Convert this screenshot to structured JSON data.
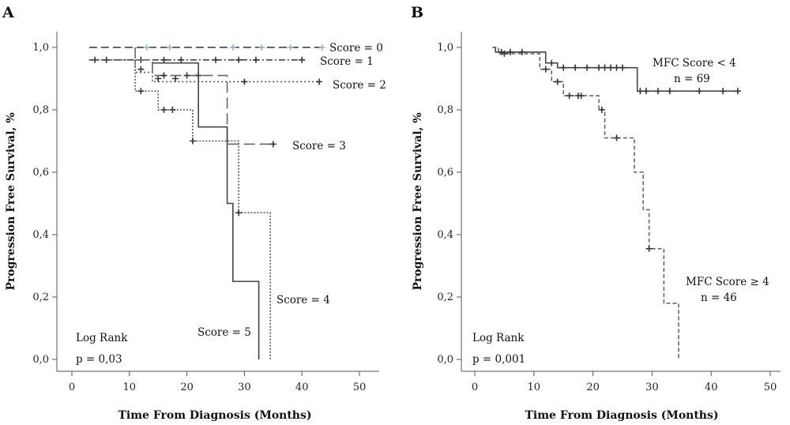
{
  "chart_data": [
    {
      "type": "line",
      "panel_label": "A",
      "xlabel": "Time From Diagnosis (Months)",
      "ylabel": "Progression Free Survival, %",
      "xlim": [
        0,
        50
      ],
      "ylim": [
        0,
        1
      ],
      "xticks": [
        0,
        10,
        20,
        30,
        40,
        50
      ],
      "xtick_labels": [
        "0",
        "10",
        "20",
        "30",
        "40",
        "50"
      ],
      "yticks": [
        0,
        0.2,
        0.4,
        0.6,
        0.8,
        1.0
      ],
      "ytick_labels": [
        "0,0",
        "0,2",
        "0,4",
        "0,6",
        "0,8",
        "1,0"
      ],
      "grid": false,
      "annotations": [
        "Log Rank",
        "p = 0,03"
      ],
      "series": [
        {
          "name": "Score = 0",
          "color": "#333333",
          "dash": "10,5",
          "censor_color": "#8fb4e8",
          "steps": [
            [
              3,
              1.0
            ],
            [
              44,
              1.0
            ]
          ],
          "censored": [
            [
              13,
              1.0
            ],
            [
              17,
              1.0
            ],
            [
              28,
              1.0
            ],
            [
              33,
              1.0
            ],
            [
              38,
              1.0
            ],
            [
              43.5,
              1.0
            ]
          ]
        },
        {
          "name": "Score = 1",
          "color": "#444444",
          "dash": "8,3,2,3",
          "steps": [
            [
              3,
              0.96
            ],
            [
              40,
              0.96
            ]
          ],
          "censored": [
            [
              4,
              0.96
            ],
            [
              6,
              0.96
            ],
            [
              12,
              0.96
            ],
            [
              16,
              0.96
            ],
            [
              19,
              0.96
            ],
            [
              25,
              0.96
            ],
            [
              29,
              0.96
            ],
            [
              32,
              0.96
            ],
            [
              40,
              0.96
            ]
          ]
        },
        {
          "name": "Score = 2",
          "color": "#555555",
          "dash": "2,3",
          "steps": [
            [
              3,
              0.96
            ],
            [
              11,
              0.96
            ],
            [
              11,
              0.92
            ],
            [
              14,
              0.92
            ],
            [
              14,
              0.89
            ],
            [
              30,
              0.89
            ],
            [
              30,
              0.89
            ],
            [
              43,
              0.89
            ]
          ],
          "censored": [
            [
              12,
              0.93
            ],
            [
              15,
              0.9
            ],
            [
              18,
              0.9
            ],
            [
              30,
              0.89
            ],
            [
              43,
              0.89
            ]
          ]
        },
        {
          "name": "Score = 3",
          "color": "#666666",
          "dash": "14,6",
          "steps": [
            [
              11,
              1.0
            ],
            [
              11,
              0.96
            ],
            [
              14,
              0.96
            ],
            [
              14,
              0.91
            ],
            [
              27,
              0.91
            ],
            [
              27,
              0.69
            ],
            [
              35,
              0.69
            ]
          ],
          "censored": [
            [
              16,
              0.91
            ],
            [
              20,
              0.91
            ],
            [
              22,
              0.91
            ],
            [
              35,
              0.69
            ]
          ]
        },
        {
          "name": "Score = 4",
          "color": "#555555",
          "dash": "2,2",
          "steps": [
            [
              11,
              0.96
            ],
            [
              11,
              0.86
            ],
            [
              15,
              0.86
            ],
            [
              15,
              0.8
            ],
            [
              21,
              0.8
            ],
            [
              21,
              0.7
            ],
            [
              29,
              0.7
            ],
            [
              29,
              0.47
            ],
            [
              34.5,
              0.47
            ],
            [
              34.5,
              0.0
            ]
          ],
          "censored": [
            [
              12,
              0.86
            ],
            [
              16,
              0.8
            ],
            [
              17.5,
              0.8
            ],
            [
              21,
              0.7
            ],
            [
              29,
              0.47
            ]
          ]
        },
        {
          "name": "Score = 5",
          "color": "#444444",
          "dash": "",
          "steps": [
            [
              14,
              0.95
            ],
            [
              22,
              0.95
            ],
            [
              22,
              0.745
            ],
            [
              27,
              0.745
            ],
            [
              27,
              0.5
            ],
            [
              28,
              0.5
            ],
            [
              28,
              0.25
            ],
            [
              32.5,
              0.25
            ],
            [
              32.5,
              0.0
            ]
          ],
          "censored": []
        }
      ]
    },
    {
      "type": "line",
      "panel_label": "B",
      "xlabel": "Time From Diagnosis (Months)",
      "ylabel": "Progression Free Survival, %",
      "xlim": [
        0,
        50
      ],
      "ylim": [
        0,
        1
      ],
      "xticks": [
        0,
        10,
        20,
        30,
        40,
        50
      ],
      "xtick_labels": [
        "0",
        "10",
        "20",
        "30",
        "40",
        "50"
      ],
      "yticks": [
        0,
        0.2,
        0.4,
        0.6,
        0.8,
        1.0
      ],
      "ytick_labels": [
        "0,0",
        "0,2",
        "0,4",
        "0,6",
        "0,8",
        "1,0"
      ],
      "grid": false,
      "annotations": [
        "Log Rank",
        "p = 0,001"
      ],
      "series": [
        {
          "name": "MFC Score < 4",
          "n_label": "n = 69",
          "color": "#444444",
          "dash": "",
          "steps": [
            [
              3,
              1.0
            ],
            [
              3.5,
              1.0
            ],
            [
              3.5,
              0.985
            ],
            [
              12,
              0.985
            ],
            [
              12,
              0.95
            ],
            [
              14,
              0.95
            ],
            [
              14,
              0.935
            ],
            [
              27.5,
              0.935
            ],
            [
              27.5,
              0.86
            ],
            [
              45,
              0.86
            ]
          ],
          "censored": [
            [
              4.5,
              0.985
            ],
            [
              6,
              0.985
            ],
            [
              8,
              0.985
            ],
            [
              13,
              0.95
            ],
            [
              15,
              0.935
            ],
            [
              17,
              0.935
            ],
            [
              19,
              0.935
            ],
            [
              21,
              0.935
            ],
            [
              22,
              0.935
            ],
            [
              23,
              0.935
            ],
            [
              24,
              0.935
            ],
            [
              25,
              0.935
            ],
            [
              28,
              0.86
            ],
            [
              29,
              0.86
            ],
            [
              31,
              0.86
            ],
            [
              33,
              0.86
            ],
            [
              38,
              0.86
            ],
            [
              42,
              0.86
            ],
            [
              44.5,
              0.86
            ]
          ]
        },
        {
          "name": "MFC Score ≥ 4",
          "n_label": "n = 46",
          "color": "#666666",
          "dash": "5,3",
          "steps": [
            [
              3,
              1.0
            ],
            [
              4,
              1.0
            ],
            [
              4,
              0.98
            ],
            [
              11,
              0.98
            ],
            [
              11,
              0.93
            ],
            [
              13,
              0.93
            ],
            [
              13,
              0.89
            ],
            [
              15,
              0.89
            ],
            [
              15,
              0.845
            ],
            [
              21,
              0.845
            ],
            [
              21,
              0.8
            ],
            [
              22,
              0.8
            ],
            [
              22,
              0.71
            ],
            [
              27,
              0.71
            ],
            [
              27,
              0.6
            ],
            [
              28.5,
              0.6
            ],
            [
              28.5,
              0.48
            ],
            [
              29.5,
              0.48
            ],
            [
              29.5,
              0.355
            ],
            [
              32,
              0.355
            ],
            [
              32,
              0.18
            ],
            [
              34.5,
              0.18
            ],
            [
              34.5,
              0.0
            ]
          ],
          "censored": [
            [
              5,
              0.98
            ],
            [
              12,
              0.93
            ],
            [
              14,
              0.89
            ],
            [
              16,
              0.845
            ],
            [
              17.5,
              0.845
            ],
            [
              18,
              0.845
            ],
            [
              21.5,
              0.8
            ],
            [
              24,
              0.71
            ],
            [
              29.5,
              0.355
            ]
          ]
        }
      ]
    }
  ]
}
